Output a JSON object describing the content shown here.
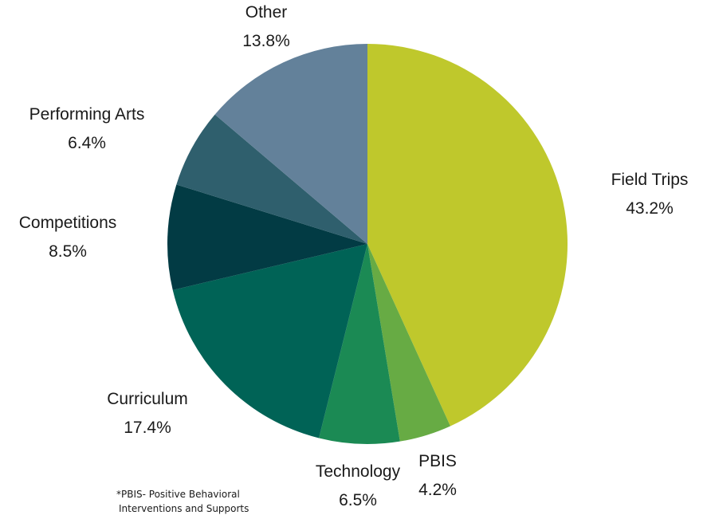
{
  "chart_data": {
    "type": "pie",
    "slices": [
      {
        "label": "Field Trips",
        "value": 43.2,
        "value_text": "43.2%",
        "color": "#bfc82c"
      },
      {
        "label": "PBIS",
        "value": 4.2,
        "value_text": "4.2%",
        "color": "#67ab44"
      },
      {
        "label": "Technology",
        "value": 6.5,
        "value_text": "6.5%",
        "color": "#1b8a54"
      },
      {
        "label": "Curriculum",
        "value": 17.4,
        "value_text": "17.4%",
        "color": "#006356"
      },
      {
        "label": "Competitions",
        "value": 8.5,
        "value_text": "8.5%",
        "color": "#023b44"
      },
      {
        "label": "Performing Arts",
        "value": 6.4,
        "value_text": "6.4%",
        "color": "#2f5f6d"
      },
      {
        "label": "Other",
        "value": 13.8,
        "value_text": "13.8%",
        "color": "#63819a"
      }
    ],
    "start": "12 o'clock",
    "direction": "clockwise"
  },
  "footnote": {
    "line1": "*PBIS- Positive Behavioral",
    "line2": "Interventions and Supports"
  }
}
